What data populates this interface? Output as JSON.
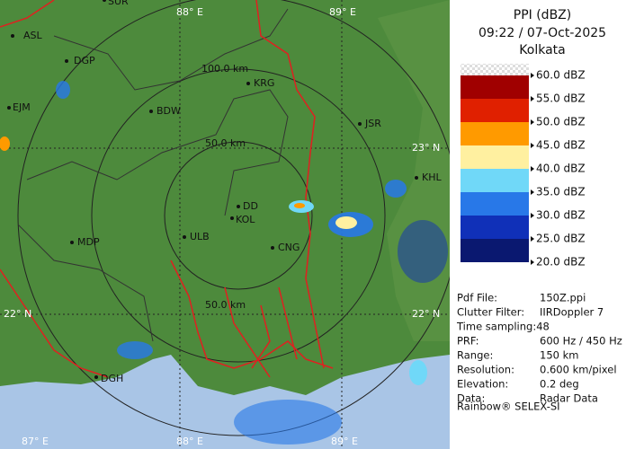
{
  "header": {
    "title": "PPI (dBZ)",
    "time": "09:22 / 07-Oct-2025",
    "station": "Kolkata"
  },
  "legend": {
    "items": [
      {
        "label": "60.0 dBZ",
        "color": "#eeeeee"
      },
      {
        "label": "55.0 dBZ",
        "color": "#a00000"
      },
      {
        "label": "50.0 dBZ",
        "color": "#e02000"
      },
      {
        "label": "45.0 dBZ",
        "color": "#ff9a00"
      },
      {
        "label": "40.0 dBZ",
        "color": "#fff0a0"
      },
      {
        "label": "35.0 dBZ",
        "color": "#70d8f8"
      },
      {
        "label": "30.0 dBZ",
        "color": "#2878e8"
      },
      {
        "label": "25.0 dBZ",
        "color": "#1030b8"
      },
      {
        "label": "20.0 dBZ",
        "color": "#0a1870"
      }
    ]
  },
  "info": {
    "rows": [
      [
        "Pdf File:",
        "150Z.ppi"
      ],
      [
        "Clutter Filter:",
        "IIRDoppler 7"
      ],
      [
        "Time sampling:48",
        ""
      ],
      [
        "PRF:",
        "600 Hz / 450 Hz"
      ],
      [
        "Range:",
        "150 km"
      ],
      [
        "Resolution:",
        "0.600 km/pixel"
      ],
      [
        "Elevation:",
        "0.2 deg"
      ],
      [
        "Data:",
        "Radar Data"
      ]
    ],
    "footer": "Rainbow® SELEX-SI"
  },
  "map": {
    "cities": [
      "ASL",
      "DGP",
      "BDW",
      "KRG",
      "JSR",
      "KHL",
      "EJM",
      "DD",
      "KOL",
      "ULB",
      "CNG",
      "MDP",
      "DGH",
      "SUR"
    ],
    "range_labels": [
      "100.0 km",
      "50.0 km",
      "50.0 km"
    ],
    "grid_labels": [
      "88° E",
      "89° E",
      "23° N",
      "22° N",
      "22° N",
      "87° E",
      "88° E",
      "89° E"
    ]
  }
}
